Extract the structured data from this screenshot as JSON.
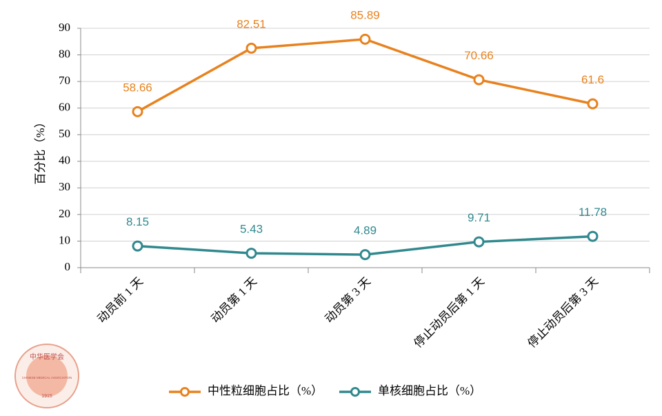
{
  "chart_data": {
    "type": "line",
    "y_label": "百分比（%）",
    "categories": [
      "动员前 1 天",
      "动员第 1 天",
      "动员第 3 天",
      "停止动员后第 1 天",
      "停止动员后第 3 天"
    ],
    "series": [
      {
        "name": "中性粒细胞占比（%）",
        "color": "#e8821e",
        "values": [
          58.66,
          82.51,
          85.89,
          70.66,
          61.6
        ]
      },
      {
        "name": "单核细胞占比（%）",
        "color": "#31898e",
        "values": [
          8.15,
          5.43,
          4.89,
          9.71,
          11.78
        ]
      }
    ],
    "ylim": [
      0,
      90
    ],
    "yticks": [
      0,
      10,
      20,
      30,
      40,
      50,
      60,
      70,
      80,
      90
    ],
    "grid": true,
    "legend": "bottom"
  },
  "logo": {
    "text": "中华医学会",
    "subtext": "CHINESE MEDICAL ASSOCIATION",
    "year": "1915"
  }
}
